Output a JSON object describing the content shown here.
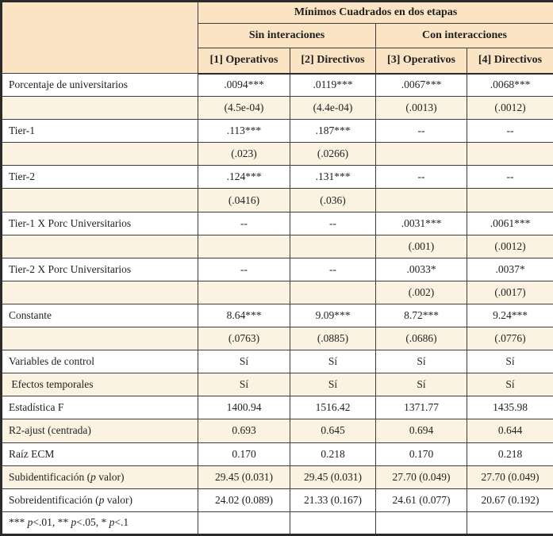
{
  "table": {
    "title": "Mínimos Cuadrados en dos etapas",
    "group_headers": [
      {
        "label": "Sin interaciones"
      },
      {
        "label": "Con interacciones"
      }
    ],
    "column_headers": [
      "[1] Operativos",
      "[2] Directivos",
      "[3] Operativos",
      "[4] Directivos"
    ],
    "rows": [
      {
        "label": "Porcentaje de universitarios",
        "shaded": false,
        "values": [
          ".0094***",
          ".0119***",
          ".0067***",
          ".0068***"
        ]
      },
      {
        "label": "",
        "shaded": true,
        "values": [
          "(4.5e-04)",
          "(4.4e-04)",
          "(.0013)",
          "(.0012)"
        ]
      },
      {
        "label": "Tier-1",
        "shaded": false,
        "values": [
          ".113***",
          ".187***",
          "--",
          "--"
        ]
      },
      {
        "label": "",
        "shaded": true,
        "values": [
          "(.023)",
          "(.0266)",
          "",
          ""
        ]
      },
      {
        "label": "Tier-2",
        "shaded": false,
        "values": [
          ".124***",
          ".131***",
          "--",
          "--"
        ]
      },
      {
        "label": "",
        "shaded": true,
        "values": [
          "(.0416)",
          "(.036)",
          "",
          ""
        ]
      },
      {
        "label": "Tier-1 X Porc Universitarios",
        "shaded": false,
        "values": [
          "--",
          "--",
          ".0031***",
          ".0061***"
        ]
      },
      {
        "label": "",
        "shaded": true,
        "values": [
          "",
          "",
          "(.001)",
          "(.0012)"
        ]
      },
      {
        "label": "Tier-2 X Porc Universitarios",
        "shaded": false,
        "values": [
          "--",
          "--",
          ".0033*",
          ".0037*"
        ]
      },
      {
        "label": "",
        "shaded": true,
        "values": [
          "",
          "",
          "(.002)",
          "(.0017)"
        ]
      },
      {
        "label": "Constante",
        "shaded": false,
        "values": [
          "8.64***",
          "9.09***",
          "8.72***",
          "9.24***"
        ]
      },
      {
        "label": "",
        "shaded": true,
        "values": [
          "(.0763)",
          "(.0885)",
          "(.0686)",
          "(.0776)"
        ]
      },
      {
        "label": "Variables de control",
        "shaded": false,
        "values": [
          "Sí",
          "Sí",
          "Sí",
          "Sí"
        ]
      },
      {
        "label": " Efectos temporales",
        "shaded": true,
        "values": [
          "Sí",
          "Sí",
          "Sí",
          "Sí"
        ]
      },
      {
        "label": "Estadística F",
        "shaded": false,
        "values": [
          "1400.94",
          "1516.42",
          "1371.77",
          "1435.98"
        ]
      },
      {
        "label": "R2-ajust (centrada)",
        "shaded": true,
        "values": [
          "0.693",
          "0.645",
          "0.694",
          "0.644"
        ]
      },
      {
        "label": "Raíz ECM",
        "shaded": false,
        "values": [
          "0.170",
          "0.218",
          "0.170",
          "0.218"
        ]
      },
      {
        "label": "Subidentificación (p valor)",
        "shaded": true,
        "values": [
          "29.45 (0.031)",
          "29.45 (0.031)",
          "27.70 (0.049)",
          "27.70 (0.049)"
        ]
      },
      {
        "label": "Sobreidentificación (p valor)",
        "shaded": false,
        "values": [
          "24.02 (0.089)",
          "21.33 (0.167)",
          "24.61 (0.077)",
          "20.67 (0.192)"
        ]
      },
      {
        "label": "*** p<.01, ** p<.05, * p<.1",
        "shaded": false,
        "values": [
          "",
          "",
          "",
          ""
        ]
      }
    ],
    "colors": {
      "header_bg": "#fae4c4",
      "shaded_row_bg": "#fcf2e1",
      "border": "#3d3d3d",
      "outer_border": "#2b2b2b",
      "text": "#1f1f1f"
    }
  }
}
